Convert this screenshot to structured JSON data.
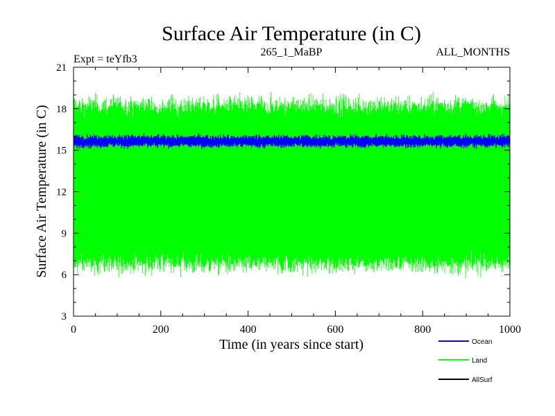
{
  "chart_data": {
    "type": "line",
    "title": "Surface Air Temperature (in C)",
    "subtitle_left": "Expt = teYfb3",
    "subtitle_center": "265_1_MaBP",
    "subtitle_right": "ALL_MONTHS",
    "xlabel": "Time (in years since start)",
    "ylabel": "Surface Air Temperature (in C)",
    "xlim": [
      0,
      1000
    ],
    "ylim": [
      3,
      21
    ],
    "xticks": [
      0,
      200,
      400,
      600,
      800,
      1000
    ],
    "yticks": [
      3,
      6,
      9,
      12,
      15,
      18,
      21
    ],
    "series": [
      {
        "name": "Land",
        "color": "#00ff00",
        "description": "monthly values oscillating between ~6.5 and ~18.5 C",
        "mean": 12.5,
        "amplitude": 5.8,
        "noise": 0.5,
        "min_observed": 5.0,
        "max_observed": 19.3
      },
      {
        "name": "Ocean",
        "color": "#0000ff",
        "description": "monthly values in a narrow band around ~15.6 C",
        "mean": 15.65,
        "amplitude": 0.3,
        "noise": 0.15,
        "min_observed": 15.1,
        "max_observed": 16.3
      },
      {
        "name": "AllSurf",
        "color": "#000000",
        "description": "listed in legend, not visible in plot"
      }
    ],
    "legend": {
      "placement": "bottom-right",
      "entries": [
        {
          "name": "Ocean",
          "color": "#0000ff"
        },
        {
          "name": "Land",
          "color": "#00ff00"
        },
        {
          "name": "AllSurf",
          "color": "#000000"
        }
      ]
    }
  }
}
